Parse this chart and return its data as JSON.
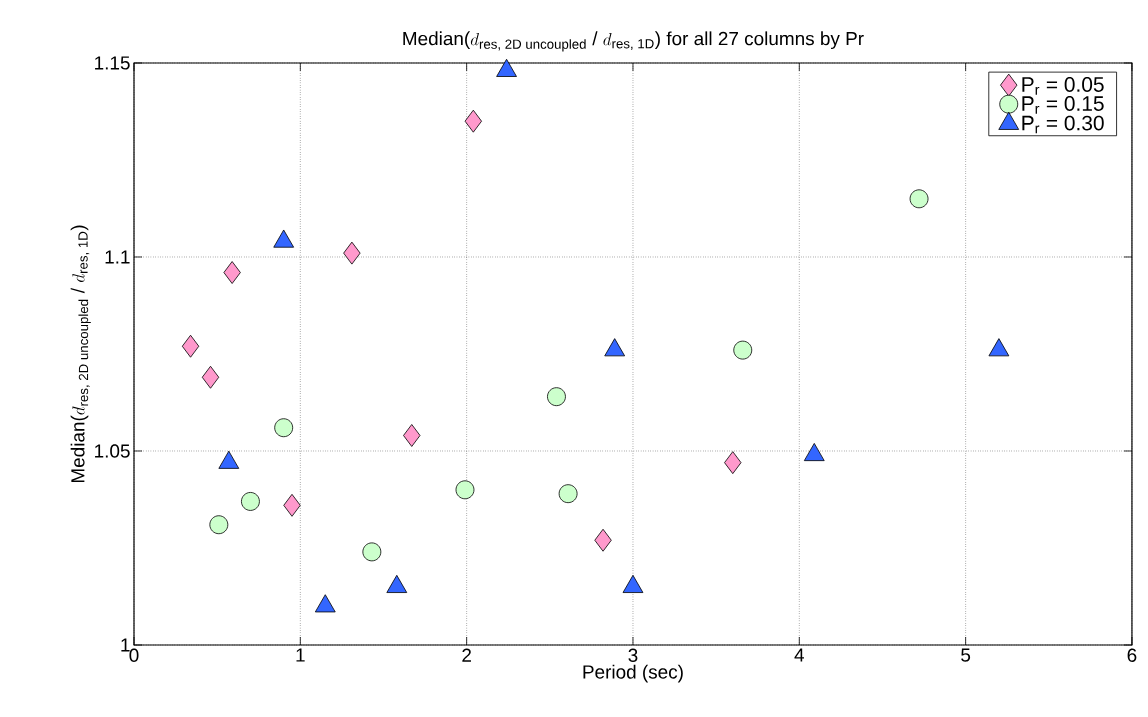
{
  "chart_data": {
    "type": "scatter",
    "title": "\\text{Median(}d_{\\text{res, 2D uncoupled}}\\text{ / }d_{\\text{res, 1D}}\\text{) for all 27 columns by Pr}",
    "xlabel": "Period (sec)",
    "ylabel": "\\text{Median(}d_{\\text{res, 2D uncoupled}}\\text{ / }d_{\\text{res, 1D}}\\text{)}",
    "xlim": [
      0,
      6
    ],
    "ylim": [
      1,
      1.15
    ],
    "xticks": [
      0,
      1,
      2,
      3,
      4,
      5,
      6
    ],
    "yticks": [
      1,
      1.05,
      1.1,
      1.15
    ],
    "grid": true,
    "legend": "top right",
    "series": [
      {
        "name": "P$_{r}$ = 0.05",
        "color": "#ff99cc",
        "marker": "diamond",
        "x": [
          0.34,
          0.46,
          0.59,
          0.95,
          1.31,
          1.67,
          2.04,
          2.82,
          3.6
        ],
        "values": [
          1.077,
          1.069,
          1.096,
          1.036,
          1.101,
          1.054,
          1.135,
          1.027,
          1.047
        ]
      },
      {
        "name": "P$_{r}$ = 0.15",
        "color": "#ccffcc",
        "marker": "circle",
        "x": [
          0.51,
          0.7,
          0.9,
          1.43,
          1.99,
          2.54,
          2.61,
          3.66,
          4.72
        ],
        "values": [
          1.031,
          1.037,
          1.056,
          1.024,
          1.04,
          1.064,
          1.039,
          1.076,
          1.115
        ]
      },
      {
        "name": "P$_{r}$ = 0.30",
        "color": "#3366ff",
        "marker": "triangle",
        "x": [
          0.57,
          0.9,
          1.15,
          1.58,
          2.24,
          2.89,
          3.0,
          4.09,
          5.2
        ],
        "values": [
          1.047,
          1.104,
          1.01,
          1.015,
          1.148,
          1.076,
          1.015,
          1.049,
          1.076
        ]
      }
    ]
  }
}
